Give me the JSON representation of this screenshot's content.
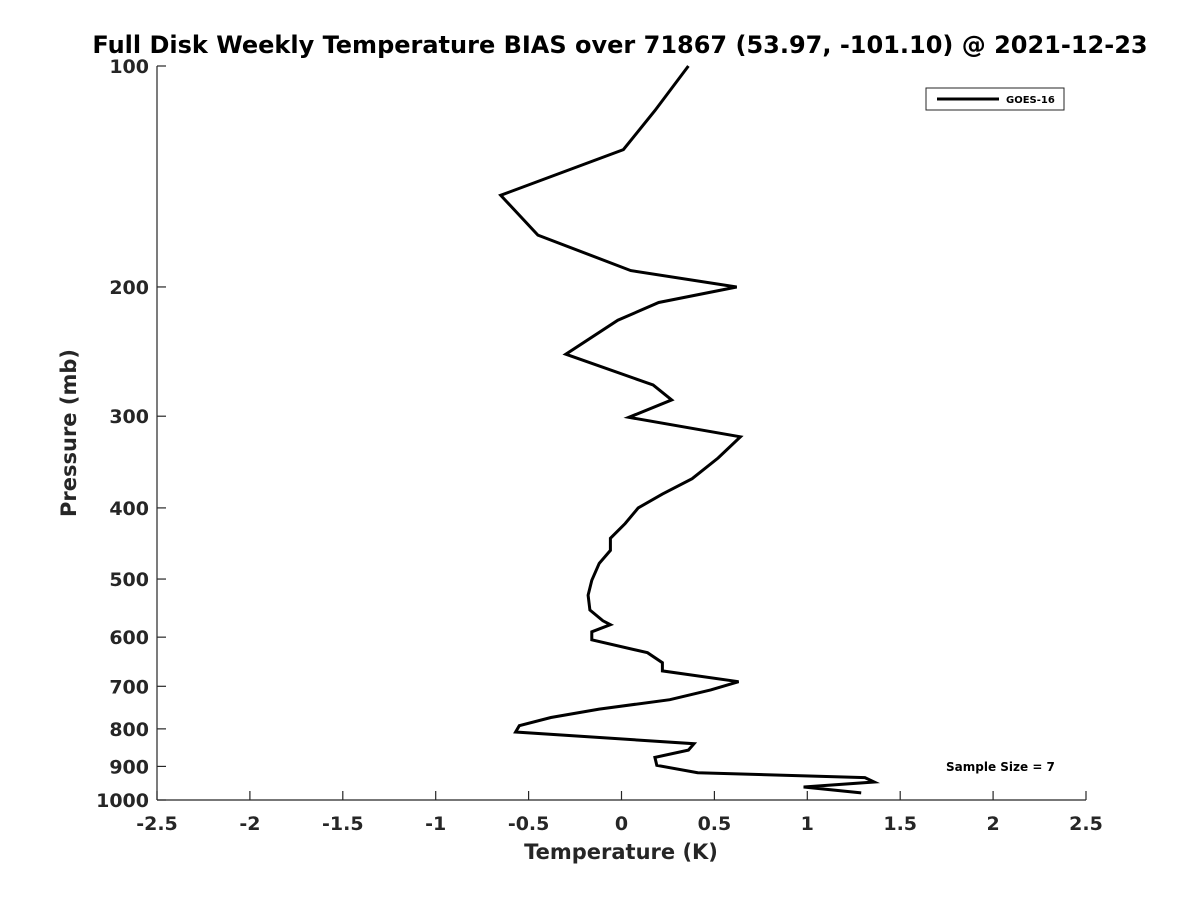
{
  "chart_data": {
    "type": "line",
    "title": "Full Disk Weekly Temperature BIAS over 71867 (53.97, -101.10) @ 2021-12-23",
    "xlabel": "Temperature (K)",
    "ylabel": "Pressure (mb)",
    "xlim": [
      -2.5,
      2.5
    ],
    "ylim": [
      100,
      1000
    ],
    "y_scale": "log",
    "y_reversed": true,
    "x_ticks": [
      -2.5,
      -2,
      -1.5,
      -1,
      -0.5,
      0,
      0.5,
      1,
      1.5,
      2,
      2.5
    ],
    "x_tick_labels": [
      "-2.5",
      "-2",
      "-1.5",
      "-1",
      "-0.5",
      "0",
      "0.5",
      "1",
      "1.5",
      "2",
      "2.5"
    ],
    "y_ticks": [
      100,
      200,
      300,
      400,
      500,
      600,
      700,
      800,
      900,
      1000
    ],
    "y_tick_labels": [
      "100",
      "200",
      "300",
      "400",
      "500",
      "600",
      "700",
      "800",
      "900",
      "1000"
    ],
    "grid": false,
    "legend_position": "top-right",
    "series": [
      {
        "name": "GOES-16",
        "color": "#000000",
        "points": [
          {
            "x": 0.36,
            "p": 100
          },
          {
            "x": 0.18,
            "p": 115
          },
          {
            "x": 0.01,
            "p": 130
          },
          {
            "x": -0.65,
            "p": 150
          },
          {
            "x": -0.45,
            "p": 170
          },
          {
            "x": 0.05,
            "p": 190
          },
          {
            "x": 0.62,
            "p": 200
          },
          {
            "x": 0.2,
            "p": 210
          },
          {
            "x": -0.02,
            "p": 222
          },
          {
            "x": -0.3,
            "p": 247
          },
          {
            "x": 0.17,
            "p": 272
          },
          {
            "x": 0.27,
            "p": 285
          },
          {
            "x": 0.04,
            "p": 301
          },
          {
            "x": 0.64,
            "p": 320
          },
          {
            "x": 0.52,
            "p": 342
          },
          {
            "x": 0.38,
            "p": 365
          },
          {
            "x": 0.22,
            "p": 383
          },
          {
            "x": 0.09,
            "p": 400
          },
          {
            "x": 0.02,
            "p": 420
          },
          {
            "x": -0.06,
            "p": 440
          },
          {
            "x": -0.06,
            "p": 457
          },
          {
            "x": -0.12,
            "p": 476
          },
          {
            "x": -0.16,
            "p": 502
          },
          {
            "x": -0.18,
            "p": 526
          },
          {
            "x": -0.17,
            "p": 551
          },
          {
            "x": -0.1,
            "p": 570
          },
          {
            "x": -0.06,
            "p": 577
          },
          {
            "x": -0.16,
            "p": 590
          },
          {
            "x": -0.16,
            "p": 605
          },
          {
            "x": 0.14,
            "p": 630
          },
          {
            "x": 0.22,
            "p": 650
          },
          {
            "x": 0.22,
            "p": 667
          },
          {
            "x": 0.63,
            "p": 690
          },
          {
            "x": 0.48,
            "p": 708
          },
          {
            "x": 0.26,
            "p": 730
          },
          {
            "x": -0.12,
            "p": 752
          },
          {
            "x": -0.38,
            "p": 772
          },
          {
            "x": -0.55,
            "p": 792
          },
          {
            "x": -0.57,
            "p": 808
          },
          {
            "x": 0.39,
            "p": 838
          },
          {
            "x": 0.36,
            "p": 855
          },
          {
            "x": 0.18,
            "p": 875
          },
          {
            "x": 0.19,
            "p": 897
          },
          {
            "x": 0.41,
            "p": 918
          },
          {
            "x": 1.31,
            "p": 932
          },
          {
            "x": 1.36,
            "p": 945
          },
          {
            "x": 0.98,
            "p": 960
          },
          {
            "x": 1.29,
            "p": 978
          }
        ]
      }
    ],
    "annotations": [
      {
        "text": "Sample Size = 7",
        "x": 2.0,
        "p": 900
      }
    ]
  }
}
